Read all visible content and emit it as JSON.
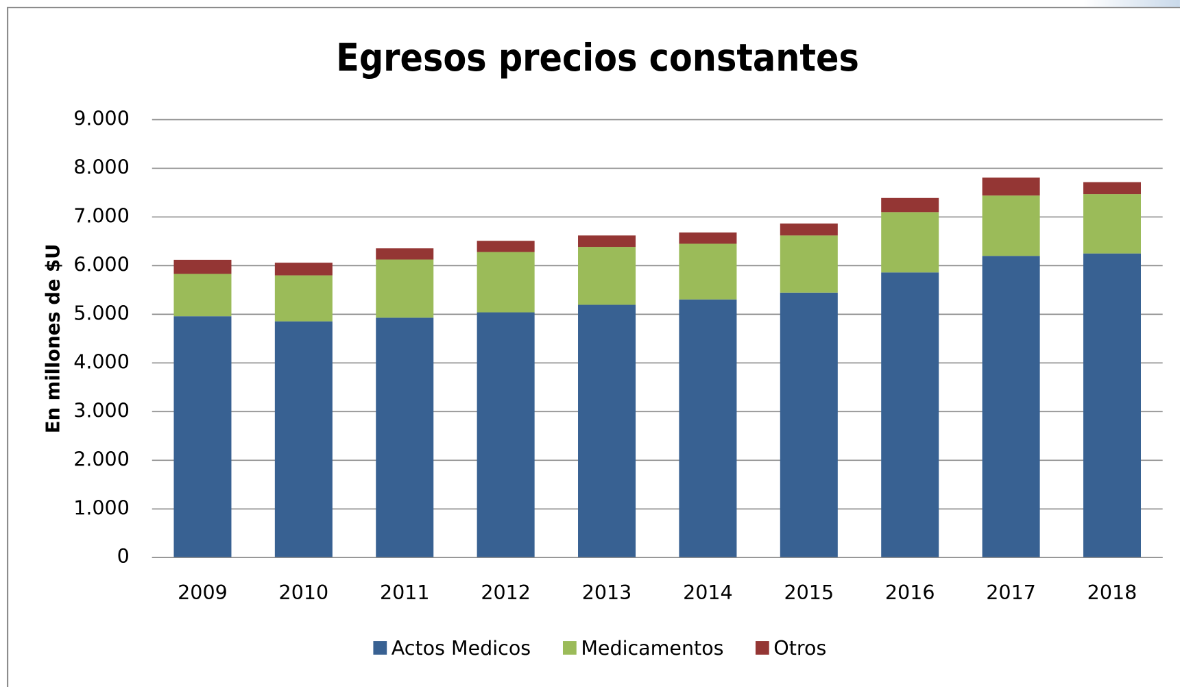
{
  "chart_data": {
    "type": "stacked_bar",
    "title": "Egresos precios constantes",
    "y_label": "En millones de $U",
    "categories": [
      "2009",
      "2010",
      "2011",
      "2012",
      "2013",
      "2014",
      "2015",
      "2016",
      "2017",
      "2018"
    ],
    "series": [
      {
        "name": "Actos Medicos",
        "color": "#386192",
        "values": [
          4960,
          4855,
          4930,
          5040,
          5195,
          5305,
          5445,
          5860,
          6200,
          6250
        ]
      },
      {
        "name": "Medicamentos",
        "color": "#9bbb59",
        "values": [
          870,
          945,
          1195,
          1240,
          1190,
          1145,
          1175,
          1240,
          1240,
          1220
        ]
      },
      {
        "name": "Otros",
        "color": "#943634",
        "values": [
          290,
          260,
          230,
          230,
          235,
          230,
          245,
          290,
          370,
          245
        ]
      }
    ],
    "ylim": [
      0,
      9000
    ],
    "yticks": [
      0,
      {
        "value": 1000,
        "label": "1.000"
      },
      {
        "value": 2000,
        "label": "2.000"
      },
      {
        "value": 3000,
        "label": "3.000"
      },
      {
        "value": 4000,
        "label": "4.000"
      },
      {
        "value": 5000,
        "label": "5.000"
      },
      {
        "value": 6000,
        "label": "6.000"
      },
      {
        "value": 7000,
        "label": "7.000"
      },
      {
        "value": 8000,
        "label": "8.000"
      },
      {
        "value": 9000,
        "label": "9.000"
      }
    ],
    "grid": true,
    "legend": "bottom"
  }
}
